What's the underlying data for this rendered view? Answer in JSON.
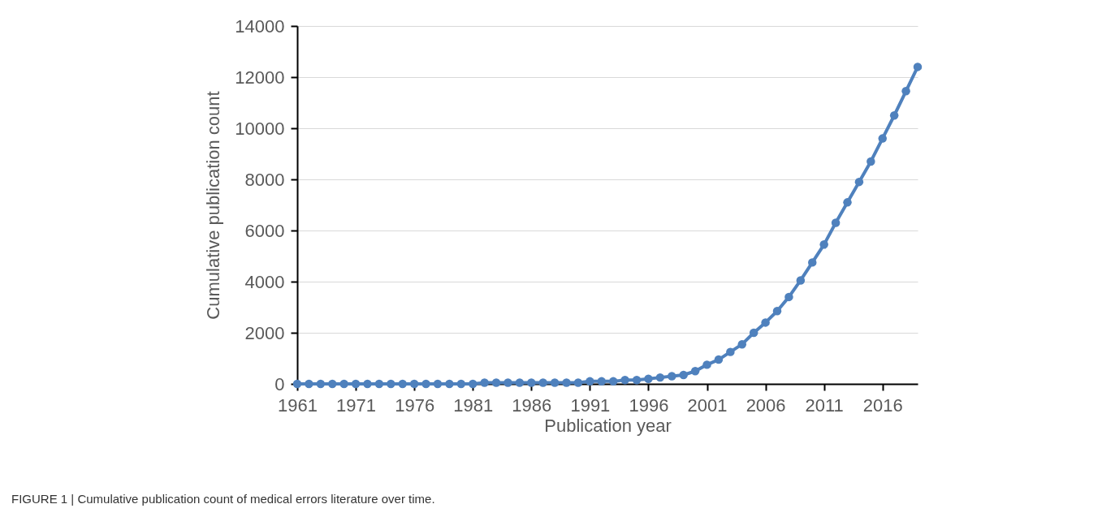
{
  "chart_data": {
    "type": "line",
    "xlabel": "Publication year",
    "ylabel": "Cumulative publication count",
    "categories": [
      "1961",
      null,
      null,
      null,
      null,
      "1971",
      null,
      null,
      null,
      null,
      "1976",
      null,
      null,
      null,
      null,
      "1981",
      null,
      null,
      null,
      null,
      "1986",
      null,
      null,
      null,
      null,
      "1991",
      null,
      null,
      null,
      null,
      "1996",
      null,
      null,
      null,
      null,
      "2001",
      null,
      null,
      null,
      null,
      "2006",
      null,
      null,
      null,
      null,
      "2011",
      null,
      null,
      null,
      null,
      "2016",
      null,
      null,
      null
    ],
    "series": [
      {
        "color": "#4f81bd",
        "values": [
          0,
          0,
          0,
          0,
          0,
          0,
          0,
          0,
          0,
          0,
          0,
          0,
          0,
          0,
          0,
          0,
          50,
          50,
          50,
          50,
          50,
          50,
          50,
          50,
          50,
          100,
          100,
          100,
          150,
          150,
          200,
          250,
          300,
          350,
          500,
          750,
          950,
          1250,
          1550,
          2000,
          2400,
          2850,
          3400,
          4050,
          4750,
          5450,
          6300,
          7100,
          7900,
          8700,
          9600,
          10500,
          11450,
          12400
        ]
      }
    ],
    "ylim": [
      0,
      14000
    ],
    "yticks": [
      0,
      2000,
      4000,
      6000,
      8000,
      10000,
      12000,
      14000
    ],
    "grid": "y",
    "marker": "circle",
    "line_style": "solid",
    "annotations": [
      "FIGURE 1 | Cumulative publication count of medical errors literature over time."
    ]
  }
}
